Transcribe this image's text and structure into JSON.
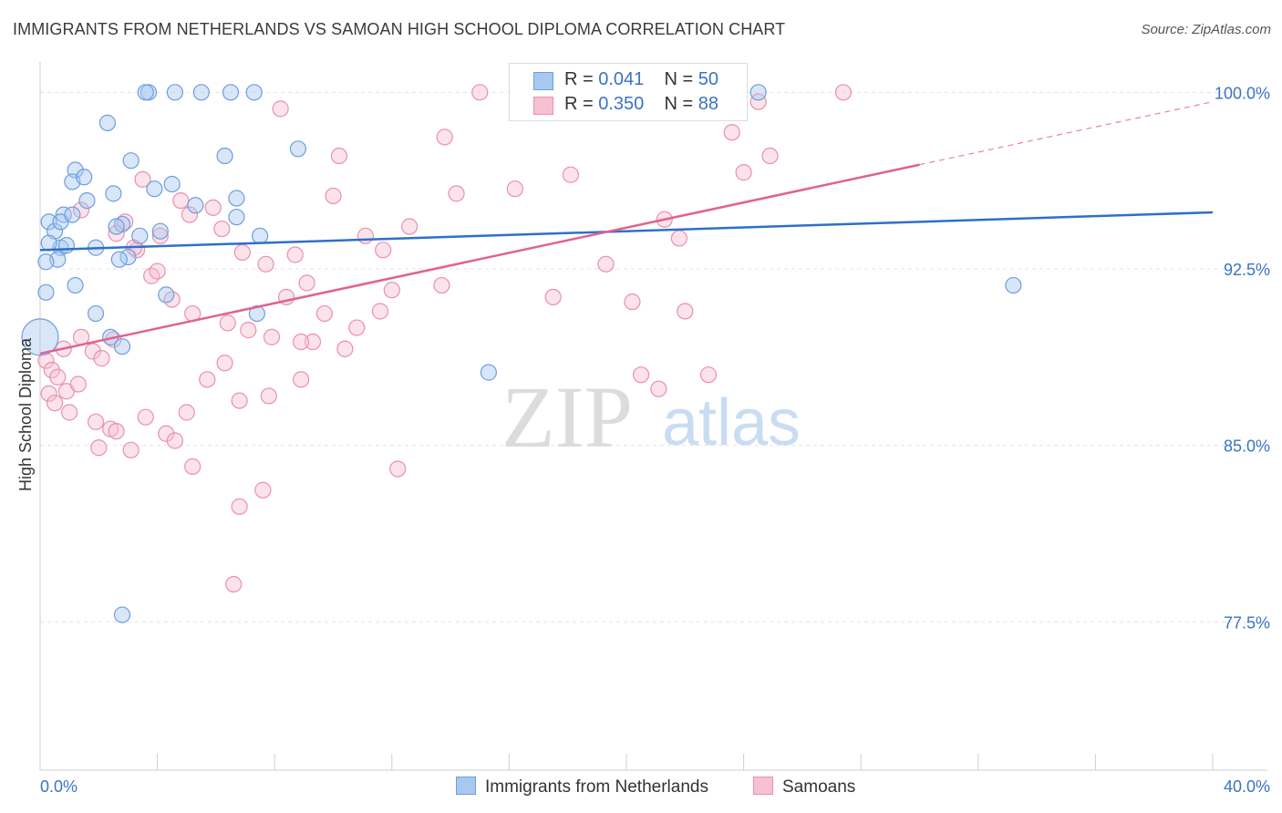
{
  "header": {
    "title": "IMMIGRANTS FROM NETHERLANDS VS SAMOAN HIGH SCHOOL DIPLOMA CORRELATION CHART",
    "source": "Source: ZipAtlas.com"
  },
  "watermark": {
    "zip": "ZIP",
    "atlas": "atlas"
  },
  "legend": {
    "rows": [
      {
        "r_label": "R = ",
        "r_value": "0.041",
        "n_label": "N = ",
        "n_value": "50"
      },
      {
        "r_label": "R = ",
        "r_value": "0.350",
        "n_label": "N = ",
        "n_value": "88"
      }
    ]
  },
  "colors": {
    "blue_fill": "#a9c8ef",
    "blue_stroke": "#6d9fdc",
    "blue_line": "#2f6fc9",
    "pink_fill": "#f7c0d1",
    "pink_stroke": "#eb8fae",
    "pink_line": "#e0628f",
    "tick_label": "#3a73c4",
    "grid": "#e3e3e3"
  },
  "chart_data": {
    "type": "scatter",
    "title": "IMMIGRANTS FROM NETHERLANDS VS SAMOAN HIGH SCHOOL DIPLOMA CORRELATION CHART",
    "xlabel": "",
    "ylabel": "High School Diploma",
    "xlim": [
      0,
      40
    ],
    "ylim": [
      71.2,
      101.6
    ],
    "x_tick_labels": [
      "0.0%",
      "40.0%"
    ],
    "y_ticks": [
      77.5,
      85.0,
      92.5,
      100.0
    ],
    "y_tick_labels": [
      "77.5%",
      "85.0%",
      "92.5%",
      "100.0%"
    ],
    "grid": true,
    "legend_position": "top-center",
    "series": [
      {
        "name": "Immigrants from Netherlands",
        "color": "blue",
        "R": 0.041,
        "N": 50,
        "trend": {
          "x": [
            0,
            40
          ],
          "y": [
            93.3,
            94.9
          ]
        },
        "points": [
          [
            0.3,
            94.5
          ],
          [
            0.5,
            94.1
          ],
          [
            0.7,
            93.4
          ],
          [
            0.3,
            93.6
          ],
          [
            0.9,
            93.5
          ],
          [
            0.6,
            92.9
          ],
          [
            0.2,
            92.8
          ],
          [
            0.8,
            94.8
          ],
          [
            1.2,
            96.7
          ],
          [
            1.1,
            96.2
          ],
          [
            1.5,
            96.4
          ],
          [
            2.3,
            98.7
          ],
          [
            3.7,
            100.0
          ],
          [
            3.6,
            100.0
          ],
          [
            4.6,
            100.0
          ],
          [
            5.5,
            100.0
          ],
          [
            6.5,
            100.0
          ],
          [
            7.3,
            100.0
          ],
          [
            24.5,
            100.0
          ],
          [
            3.1,
            97.1
          ],
          [
            3.9,
            95.9
          ],
          [
            2.8,
            94.4
          ],
          [
            2.5,
            95.7
          ],
          [
            1.6,
            95.4
          ],
          [
            0.7,
            94.5
          ],
          [
            1.1,
            94.8
          ],
          [
            2.6,
            94.3
          ],
          [
            3.4,
            93.9
          ],
          [
            1.9,
            93.4
          ],
          [
            3.0,
            93.0
          ],
          [
            2.7,
            92.9
          ],
          [
            4.5,
            96.1
          ],
          [
            5.3,
            95.2
          ],
          [
            4.1,
            94.1
          ],
          [
            6.7,
            94.7
          ],
          [
            7.5,
            93.9
          ],
          [
            8.8,
            97.6
          ],
          [
            6.3,
            97.3
          ],
          [
            6.7,
            95.5
          ],
          [
            1.9,
            90.6
          ],
          [
            0.2,
            91.5
          ],
          [
            1.2,
            91.8
          ],
          [
            4.3,
            91.4
          ],
          [
            2.4,
            89.6
          ],
          [
            2.8,
            89.2
          ],
          [
            7.4,
            90.6
          ],
          [
            0.0,
            89.6
          ],
          [
            15.3,
            88.1
          ],
          [
            33.2,
            91.8
          ],
          [
            2.8,
            77.8
          ]
        ]
      },
      {
        "name": "Samoans",
        "color": "pink",
        "R": 0.35,
        "N": 88,
        "trend": {
          "x": [
            0,
            40
          ],
          "y": [
            88.9,
            99.6
          ]
        },
        "trend_solid_to_x": 30.0,
        "points": [
          [
            0.2,
            88.6
          ],
          [
            0.4,
            88.2
          ],
          [
            0.6,
            87.9
          ],
          [
            0.9,
            87.3
          ],
          [
            1.3,
            87.6
          ],
          [
            0.8,
            89.1
          ],
          [
            1.4,
            89.6
          ],
          [
            1.8,
            89.0
          ],
          [
            2.1,
            88.7
          ],
          [
            2.5,
            89.5
          ],
          [
            0.3,
            87.2
          ],
          [
            0.5,
            86.8
          ],
          [
            1.0,
            86.4
          ],
          [
            1.9,
            86.0
          ],
          [
            2.4,
            85.7
          ],
          [
            3.6,
            86.2
          ],
          [
            4.3,
            85.5
          ],
          [
            5.0,
            86.4
          ],
          [
            5.7,
            87.8
          ],
          [
            6.3,
            88.5
          ],
          [
            6.8,
            86.9
          ],
          [
            7.8,
            87.1
          ],
          [
            8.9,
            87.8
          ],
          [
            9.3,
            89.4
          ],
          [
            10.4,
            89.1
          ],
          [
            11.6,
            90.7
          ],
          [
            12.0,
            91.6
          ],
          [
            13.7,
            91.8
          ],
          [
            16.2,
            95.9
          ],
          [
            13.8,
            98.1
          ],
          [
            18.1,
            96.5
          ],
          [
            14.2,
            95.7
          ],
          [
            12.6,
            94.3
          ],
          [
            11.1,
            93.9
          ],
          [
            11.7,
            93.3
          ],
          [
            10.0,
            95.6
          ],
          [
            8.7,
            93.1
          ],
          [
            9.1,
            91.9
          ],
          [
            7.7,
            92.7
          ],
          [
            6.9,
            93.2
          ],
          [
            6.2,
            94.2
          ],
          [
            5.9,
            95.1
          ],
          [
            5.1,
            94.8
          ],
          [
            4.8,
            95.4
          ],
          [
            4.1,
            93.9
          ],
          [
            3.8,
            92.2
          ],
          [
            3.3,
            93.3
          ],
          [
            2.9,
            94.5
          ],
          [
            2.6,
            94.0
          ],
          [
            3.2,
            93.4
          ],
          [
            4.0,
            92.4
          ],
          [
            4.5,
            91.2
          ],
          [
            5.2,
            90.6
          ],
          [
            6.4,
            90.2
          ],
          [
            7.1,
            89.9
          ],
          [
            7.9,
            89.6
          ],
          [
            8.4,
            91.3
          ],
          [
            8.9,
            89.4
          ],
          [
            9.7,
            90.6
          ],
          [
            10.8,
            90.0
          ],
          [
            17.5,
            91.3
          ],
          [
            19.3,
            92.7
          ],
          [
            21.3,
            94.6
          ],
          [
            21.8,
            93.8
          ],
          [
            20.2,
            91.1
          ],
          [
            22.0,
            90.7
          ],
          [
            20.5,
            88.0
          ],
          [
            21.1,
            87.4
          ],
          [
            22.8,
            88.0
          ],
          [
            24.0,
            96.6
          ],
          [
            23.6,
            98.3
          ],
          [
            24.5,
            99.6
          ],
          [
            24.9,
            97.3
          ],
          [
            27.4,
            100.0
          ],
          [
            15.0,
            100.0
          ],
          [
            8.2,
            99.3
          ],
          [
            10.2,
            97.3
          ],
          [
            3.5,
            96.3
          ],
          [
            1.4,
            95.0
          ],
          [
            2.6,
            85.6
          ],
          [
            3.1,
            84.8
          ],
          [
            5.2,
            84.1
          ],
          [
            6.8,
            82.4
          ],
          [
            7.6,
            83.1
          ],
          [
            6.6,
            79.1
          ],
          [
            12.2,
            84.0
          ],
          [
            4.6,
            85.2
          ],
          [
            2.0,
            84.9
          ]
        ]
      }
    ]
  },
  "bottom_legend": {
    "items": [
      {
        "label": "Immigrants from Netherlands"
      },
      {
        "label": "Samoans"
      }
    ]
  }
}
